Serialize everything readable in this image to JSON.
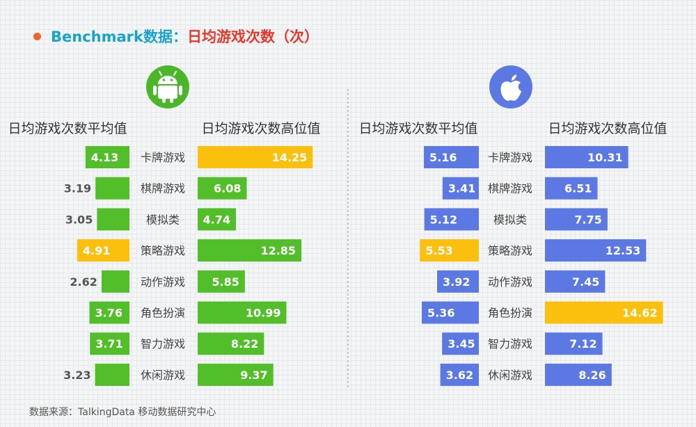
{
  "title": {
    "prefix": "Benchmark数据：",
    "main": "日均游戏次数（次）"
  },
  "colors": {
    "bullet": "#f0642a",
    "title_prefix": "#1aa3c9",
    "title_main": "#e8382b",
    "android_bar": "#52bf2a",
    "ios_bar": "#5b78e3",
    "highlight": "#fbbf0e",
    "android_icon_bg": "#4cb62a",
    "ios_icon_bg": "#5b78e3",
    "header_text": "#333333",
    "category_text": "#444444",
    "divider": "#999999"
  },
  "source": "数据来源：TalkingData 移动数据研究中心",
  "chart_data": [
    {
      "type": "bar",
      "platform_icon": "android-icon",
      "categories": [
        "卡牌游戏",
        "棋牌游戏",
        "模拟类",
        "策略游戏",
        "动作游戏",
        "角色扮演",
        "智力游戏",
        "休闲游戏"
      ],
      "series": [
        {
          "name": "日均游戏次数平均值",
          "values": [
            4.13,
            3.19,
            3.05,
            4.91,
            2.62,
            3.76,
            3.71,
            3.23
          ],
          "highlight_index": 3
        },
        {
          "name": "日均游戏次数高位值",
          "values": [
            14.25,
            6.08,
            4.74,
            12.85,
            5.85,
            10.99,
            8.22,
            9.37
          ],
          "highlight_index": 0
        }
      ]
    },
    {
      "type": "bar",
      "platform_icon": "apple-icon",
      "categories": [
        "卡牌游戏",
        "棋牌游戏",
        "模拟类",
        "策略游戏",
        "动作游戏",
        "角色扮演",
        "智力游戏",
        "休闲游戏"
      ],
      "series": [
        {
          "name": "日均游戏次数平均值",
          "values": [
            5.16,
            3.41,
            5.12,
            5.53,
            3.92,
            5.36,
            3.45,
            3.62
          ],
          "highlight_index": 3
        },
        {
          "name": "日均游戏次数高位值",
          "values": [
            10.31,
            6.51,
            7.75,
            12.53,
            7.45,
            14.62,
            7.12,
            8.26
          ],
          "highlight_index": 5
        }
      ]
    }
  ]
}
